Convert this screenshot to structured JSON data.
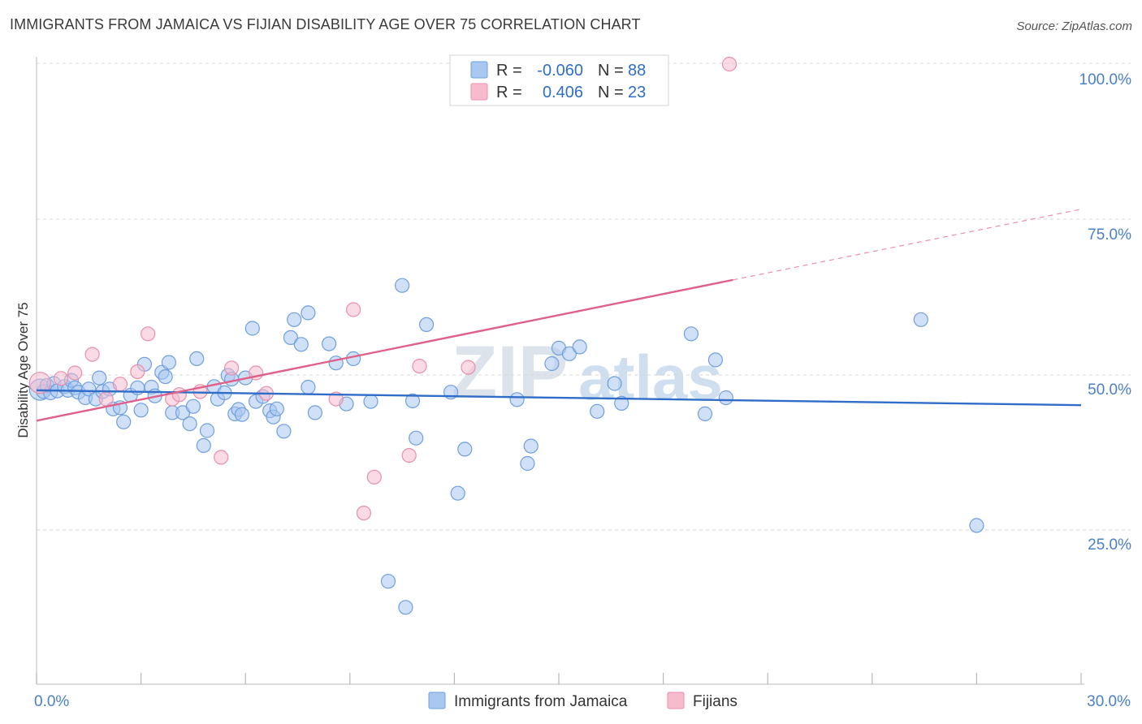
{
  "header": {
    "title": "IMMIGRANTS FROM JAMAICA VS FIJIAN DISABILITY AGE OVER 75 CORRELATION CHART",
    "source": "Source: ZipAtlas.com"
  },
  "watermark": {
    "zip": "ZIP",
    "atlas": "atlas"
  },
  "colors": {
    "blue_fill": "#aac7ef",
    "blue_stroke": "#6f9fe0",
    "blue_line": "#2f6dc8",
    "pink_fill": "#f6bccd",
    "pink_stroke": "#e98fab",
    "pink_line": "#e0608a",
    "grid": "#d7d7d7",
    "tick_text": "#4a7fcc"
  },
  "legend": {
    "rows": [
      {
        "r_label": "R =",
        "r_value": "-0.060",
        "n_label": "N =",
        "n_value": "88"
      },
      {
        "r_label": "R =",
        "r_value": "0.406",
        "n_label": "N =",
        "n_value": "23"
      }
    ]
  },
  "bottom_legend": {
    "items": [
      {
        "label": "Immigrants from Jamaica"
      },
      {
        "label": "Fijians"
      }
    ]
  },
  "chart_data": {
    "type": "scatter",
    "ylabel": "Disability Age Over 75",
    "xlim": [
      0,
      30
    ],
    "ylim": [
      0,
      103
    ],
    "x_tick_labels": {
      "min": "0.0%",
      "max": "30.0%"
    },
    "y_ticks": [
      {
        "value": 100,
        "label": "100.0%"
      },
      {
        "value": 75,
        "label": "75.0%"
      },
      {
        "value": 50,
        "label": "50.0%"
      },
      {
        "value": 25,
        "label": "25.0%"
      }
    ],
    "grid": true,
    "series": [
      {
        "name": "Immigrants from Jamaica",
        "color": "blue",
        "trend": {
          "x0": 0,
          "y0": 47.4,
          "x1": 30,
          "y1": 45.0
        },
        "points": [
          [
            0.1,
            47.5
          ],
          [
            0.2,
            47.2
          ],
          [
            0.3,
            48.2
          ],
          [
            0.4,
            47.0
          ],
          [
            0.5,
            48.5
          ],
          [
            0.6,
            47.3
          ],
          [
            0.8,
            48.0
          ],
          [
            0.9,
            47.4
          ],
          [
            1.0,
            49.0
          ],
          [
            1.1,
            47.8
          ],
          [
            1.2,
            47.1
          ],
          [
            1.4,
            46.2
          ],
          [
            1.5,
            47.6
          ],
          [
            1.7,
            46.0
          ],
          [
            1.8,
            49.4
          ],
          [
            1.9,
            47.2
          ],
          [
            2.1,
            47.6
          ],
          [
            2.2,
            44.4
          ],
          [
            2.4,
            44.6
          ],
          [
            2.5,
            42.3
          ],
          [
            2.7,
            46.6
          ],
          [
            2.9,
            47.8
          ],
          [
            3.0,
            44.2
          ],
          [
            3.1,
            51.6
          ],
          [
            3.3,
            47.9
          ],
          [
            3.4,
            46.5
          ],
          [
            3.6,
            50.3
          ],
          [
            3.7,
            49.6
          ],
          [
            3.8,
            51.9
          ],
          [
            3.9,
            43.8
          ],
          [
            4.2,
            43.8
          ],
          [
            4.4,
            42.0
          ],
          [
            4.5,
            44.8
          ],
          [
            4.6,
            52.5
          ],
          [
            4.8,
            38.5
          ],
          [
            4.9,
            40.9
          ],
          [
            5.1,
            48.0
          ],
          [
            5.2,
            46.0
          ],
          [
            5.4,
            47.0
          ],
          [
            5.5,
            49.8
          ],
          [
            5.6,
            49.2
          ],
          [
            5.7,
            43.6
          ],
          [
            5.8,
            44.3
          ],
          [
            5.9,
            43.5
          ],
          [
            6.0,
            49.4
          ],
          [
            6.2,
            57.4
          ],
          [
            6.3,
            45.6
          ],
          [
            6.5,
            46.4
          ],
          [
            6.7,
            44.1
          ],
          [
            6.8,
            43.1
          ],
          [
            6.9,
            44.4
          ],
          [
            7.1,
            40.8
          ],
          [
            7.3,
            55.9
          ],
          [
            7.4,
            58.8
          ],
          [
            7.6,
            54.8
          ],
          [
            7.8,
            47.9
          ],
          [
            7.8,
            59.9
          ],
          [
            8.0,
            43.8
          ],
          [
            8.4,
            54.9
          ],
          [
            8.6,
            51.8
          ],
          [
            8.9,
            45.2
          ],
          [
            9.1,
            52.5
          ],
          [
            9.6,
            45.6
          ],
          [
            10.1,
            16.6
          ],
          [
            10.5,
            64.3
          ],
          [
            10.6,
            12.4
          ],
          [
            10.8,
            45.7
          ],
          [
            10.9,
            39.7
          ],
          [
            11.2,
            58.0
          ],
          [
            11.9,
            47.1
          ],
          [
            12.1,
            30.8
          ],
          [
            12.3,
            37.9
          ],
          [
            13.8,
            45.9
          ],
          [
            14.1,
            35.6
          ],
          [
            14.2,
            38.4
          ],
          [
            14.8,
            51.7
          ],
          [
            15.0,
            54.2
          ],
          [
            15.3,
            53.3
          ],
          [
            15.6,
            54.4
          ],
          [
            16.1,
            44.0
          ],
          [
            16.6,
            48.5
          ],
          [
            16.8,
            45.3
          ],
          [
            18.8,
            56.5
          ],
          [
            19.2,
            43.6
          ],
          [
            19.5,
            52.3
          ],
          [
            19.8,
            46.2
          ],
          [
            25.4,
            58.8
          ],
          [
            27.0,
            25.6
          ]
        ]
      },
      {
        "name": "Fijians",
        "color": "pink",
        "trend": {
          "x0": 0,
          "y0": 42.5,
          "x1": 20,
          "y1": 65.2,
          "ext_x1": 30,
          "ext_y1": 76.6
        },
        "points": [
          [
            0.1,
            48.6
          ],
          [
            0.7,
            49.3
          ],
          [
            1.1,
            50.2
          ],
          [
            1.6,
            53.2
          ],
          [
            2.0,
            46.0
          ],
          [
            2.4,
            48.4
          ],
          [
            2.9,
            50.4
          ],
          [
            3.2,
            56.5
          ],
          [
            3.9,
            46.0
          ],
          [
            4.1,
            46.7
          ],
          [
            4.7,
            47.2
          ],
          [
            5.3,
            36.6
          ],
          [
            5.6,
            51.0
          ],
          [
            6.3,
            50.2
          ],
          [
            6.6,
            46.9
          ],
          [
            8.6,
            46.0
          ],
          [
            9.1,
            60.4
          ],
          [
            9.4,
            27.6
          ],
          [
            9.7,
            33.4
          ],
          [
            10.7,
            36.9
          ],
          [
            11.0,
            51.3
          ],
          [
            12.4,
            51.1
          ],
          [
            19.9,
            100.0
          ]
        ]
      }
    ]
  }
}
